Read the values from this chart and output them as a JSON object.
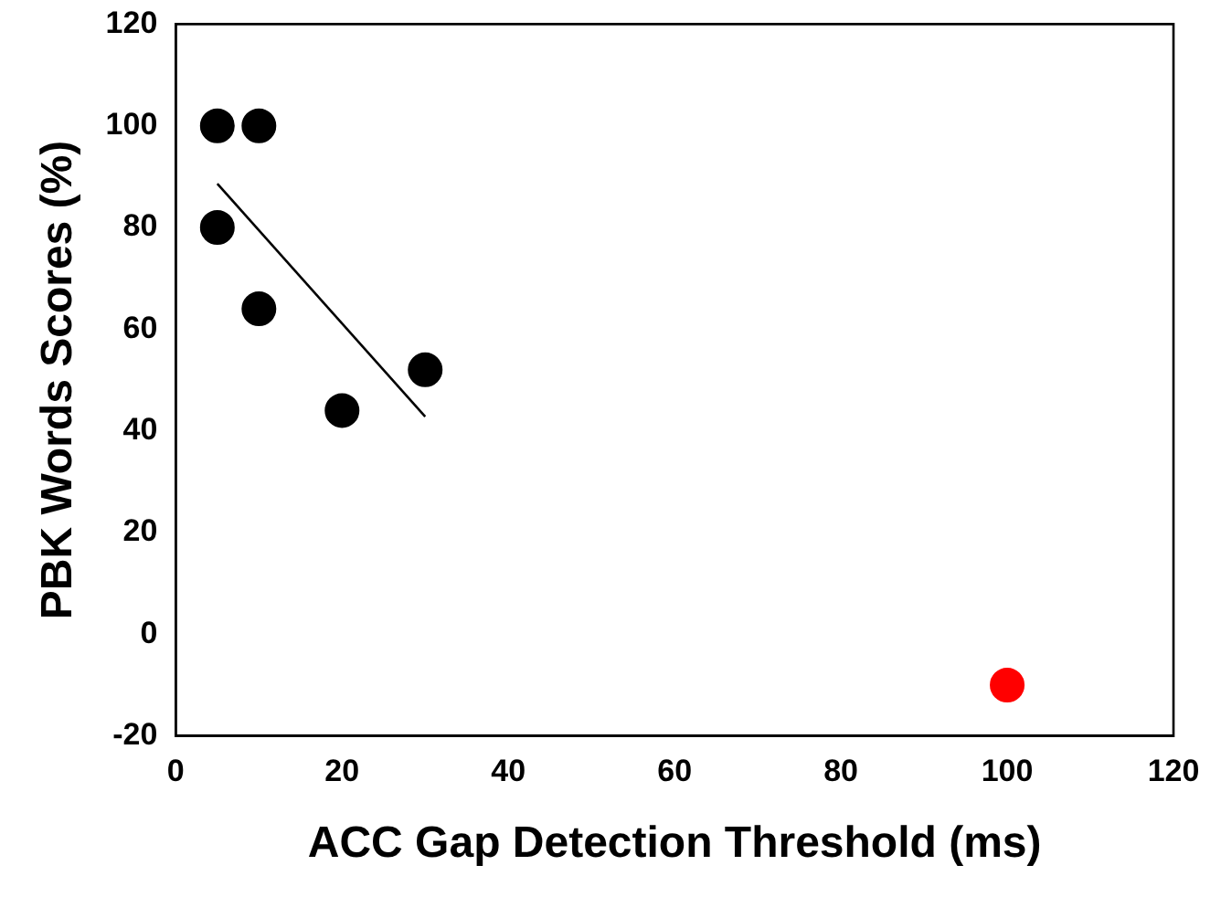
{
  "chart_data": {
    "type": "scatter",
    "xlabel": "ACC Gap Detection Threshold (ms)",
    "ylabel": "PBK Words Scores (%)",
    "xlim": [
      0,
      120
    ],
    "xticks": [
      0,
      20,
      40,
      60,
      80,
      100,
      120
    ],
    "ylim": [
      -20,
      120
    ],
    "yticks": [
      -20,
      0,
      20,
      40,
      60,
      80,
      100,
      120
    ],
    "grid": false,
    "marker": "circle",
    "series": [
      {
        "type": "scatter",
        "color": "#000000",
        "x": [
          5,
          10,
          5,
          10,
          20,
          30
        ],
        "values": [
          100,
          100,
          80,
          64,
          44,
          52
        ]
      },
      {
        "type": "scatter",
        "color": "#ff0000",
        "x": [
          100
        ],
        "values": [
          -10
        ]
      },
      {
        "type": "line",
        "color": "#000000",
        "marker": "none",
        "line_style": "solid",
        "x": [
          5,
          30
        ],
        "values": [
          88.6,
          42.8
        ]
      }
    ]
  }
}
